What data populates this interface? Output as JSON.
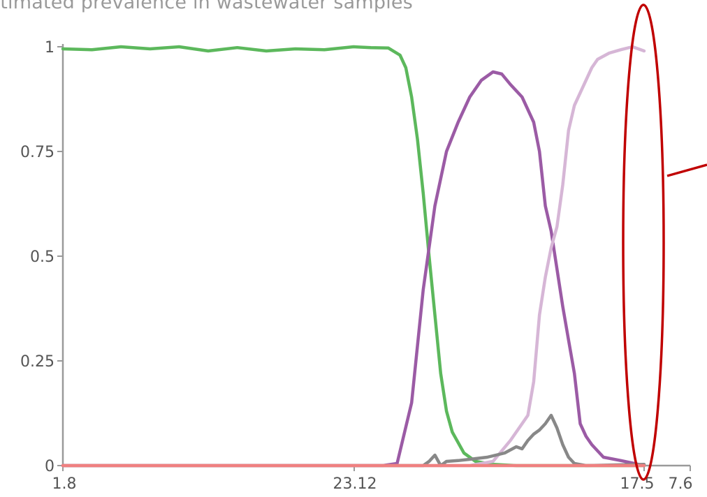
{
  "chart_data": {
    "type": "line",
    "title": "stimated prevalence in wastewater samples",
    "xlabel": "",
    "ylabel": "",
    "ylim": [
      0,
      1
    ],
    "yticks": [
      "0",
      "0.25",
      "0.5",
      "0.75",
      "1"
    ],
    "xticks": [
      "1.8",
      "23.12",
      "17.5",
      "7.6"
    ],
    "grid": false,
    "series": [
      {
        "color": "#5cb85c",
        "values": [
          [
            0.0,
            0.995
          ],
          [
            0.05,
            0.993
          ],
          [
            0.1,
            1.0
          ],
          [
            0.15,
            0.995
          ],
          [
            0.2,
            1.0
          ],
          [
            0.25,
            0.99
          ],
          [
            0.3,
            0.998
          ],
          [
            0.35,
            0.99
          ],
          [
            0.4,
            0.995
          ],
          [
            0.45,
            0.993
          ],
          [
            0.5,
            1.0
          ],
          [
            0.53,
            0.998
          ],
          [
            0.56,
            0.997
          ],
          [
            0.58,
            0.98
          ],
          [
            0.59,
            0.95
          ],
          [
            0.6,
            0.88
          ],
          [
            0.61,
            0.78
          ],
          [
            0.62,
            0.65
          ],
          [
            0.63,
            0.5
          ],
          [
            0.64,
            0.36
          ],
          [
            0.65,
            0.22
          ],
          [
            0.66,
            0.13
          ],
          [
            0.67,
            0.08
          ],
          [
            0.69,
            0.03
          ],
          [
            0.71,
            0.01
          ],
          [
            0.74,
            0.003
          ],
          [
            0.78,
            0.0
          ],
          [
            1.0,
            0.0
          ]
        ]
      },
      {
        "color": "#9b5ba5",
        "values": [
          [
            0.0,
            0.0
          ],
          [
            0.55,
            0.0
          ],
          [
            0.575,
            0.005
          ],
          [
            0.6,
            0.15
          ],
          [
            0.62,
            0.42
          ],
          [
            0.64,
            0.62
          ],
          [
            0.66,
            0.75
          ],
          [
            0.68,
            0.82
          ],
          [
            0.7,
            0.88
          ],
          [
            0.72,
            0.92
          ],
          [
            0.74,
            0.94
          ],
          [
            0.755,
            0.935
          ],
          [
            0.77,
            0.91
          ],
          [
            0.79,
            0.88
          ],
          [
            0.81,
            0.82
          ],
          [
            0.82,
            0.75
          ],
          [
            0.83,
            0.62
          ],
          [
            0.84,
            0.56
          ],
          [
            0.85,
            0.47
          ],
          [
            0.86,
            0.38
          ],
          [
            0.87,
            0.3
          ],
          [
            0.88,
            0.22
          ],
          [
            0.89,
            0.1
          ],
          [
            0.9,
            0.07
          ],
          [
            0.91,
            0.05
          ],
          [
            0.93,
            0.02
          ],
          [
            0.96,
            0.012
          ],
          [
            1.0,
            0.0
          ]
        ]
      },
      {
        "color": "#d6b6d6",
        "values": [
          [
            0.0,
            0.0
          ],
          [
            0.7,
            0.0
          ],
          [
            0.74,
            0.01
          ],
          [
            0.77,
            0.06
          ],
          [
            0.79,
            0.1
          ],
          [
            0.8,
            0.12
          ],
          [
            0.81,
            0.2
          ],
          [
            0.82,
            0.36
          ],
          [
            0.83,
            0.45
          ],
          [
            0.84,
            0.52
          ],
          [
            0.85,
            0.57
          ],
          [
            0.86,
            0.67
          ],
          [
            0.87,
            0.8
          ],
          [
            0.88,
            0.86
          ],
          [
            0.89,
            0.89
          ],
          [
            0.9,
            0.92
          ],
          [
            0.91,
            0.95
          ],
          [
            0.92,
            0.97
          ],
          [
            0.94,
            0.985
          ],
          [
            0.96,
            0.993
          ],
          [
            0.98,
            1.0
          ],
          [
            1.0,
            0.99
          ]
        ]
      },
      {
        "color": "#888888",
        "values": [
          [
            0.0,
            0.0
          ],
          [
            0.62,
            0.0
          ],
          [
            0.63,
            0.01
          ],
          [
            0.64,
            0.025
          ],
          [
            0.65,
            0.0
          ],
          [
            0.66,
            0.01
          ],
          [
            0.68,
            0.012
          ],
          [
            0.7,
            0.015
          ],
          [
            0.73,
            0.02
          ],
          [
            0.76,
            0.03
          ],
          [
            0.78,
            0.045
          ],
          [
            0.79,
            0.04
          ],
          [
            0.8,
            0.06
          ],
          [
            0.81,
            0.075
          ],
          [
            0.82,
            0.085
          ],
          [
            0.83,
            0.1
          ],
          [
            0.84,
            0.12
          ],
          [
            0.85,
            0.09
          ],
          [
            0.86,
            0.05
          ],
          [
            0.87,
            0.02
          ],
          [
            0.88,
            0.005
          ],
          [
            0.9,
            0.0
          ],
          [
            1.0,
            0.003
          ]
        ]
      },
      {
        "color": "#f08080",
        "values": [
          [
            0.0,
            0.0
          ],
          [
            1.0,
            0.0
          ]
        ]
      }
    ]
  },
  "annotation": {
    "color": "#c00000"
  }
}
